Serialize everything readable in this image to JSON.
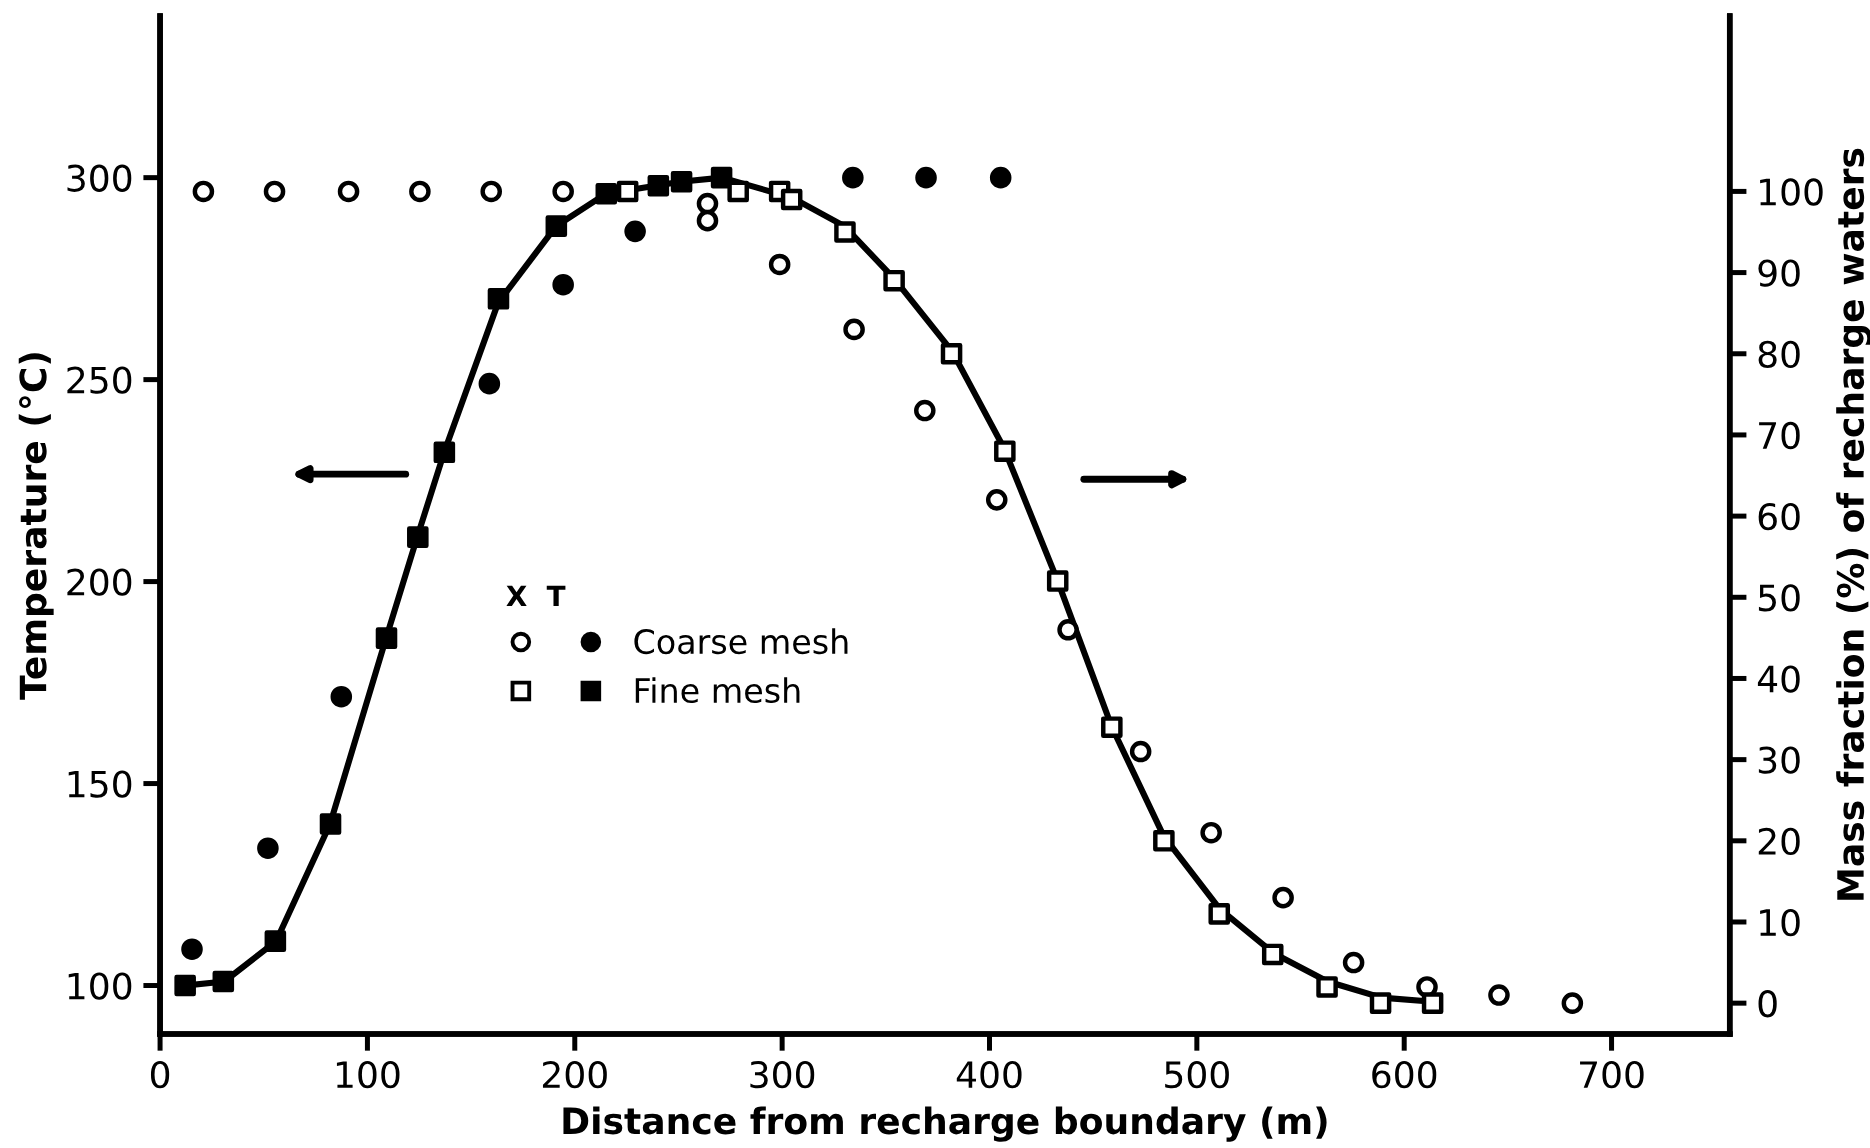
{
  "chart_data": {
    "type": "scatter",
    "xlabel": "Distance from recharge boundary (m)",
    "ylabel": "Temperature (°C)",
    "y2label": "Mass fraction (%) of recharge waters",
    "legend_title": "X  T",
    "xlim": [
      0,
      757
    ],
    "xticks": [
      0,
      100,
      200,
      300,
      400,
      500,
      600,
      700
    ],
    "ylim": [
      88,
      340
    ],
    "yticks": [
      100,
      150,
      200,
      250,
      300
    ],
    "y2lim": [
      -3.8,
      121.6
    ],
    "y2ticks": [
      0,
      10,
      20,
      30,
      40,
      50,
      60,
      70,
      80,
      90,
      100
    ],
    "legend": "center",
    "grid": false,
    "series": [
      {
        "type": "line",
        "color": "#000000",
        "marker": "none",
        "line_style": "solid",
        "x": [
          12,
          31,
          56,
          82,
          109,
          124,
          137,
          163,
          191,
          215,
          251,
          271,
          305,
          330,
          354,
          382,
          407,
          433,
          459,
          484,
          511,
          537,
          563,
          589,
          614
        ],
        "values": [
          100,
          101,
          111,
          140,
          186,
          211,
          232,
          269,
          288,
          296,
          299,
          300,
          295,
          288,
          275,
          257,
          233,
          200,
          164,
          137,
          119,
          108,
          101,
          97,
          96
        ]
      },
      {
        "name": "Coarse mesh",
        "color": "#000000",
        "marker": "circle",
        "x": [
          15.4,
          52,
          87.4,
          158.8,
          194.4,
          229.1,
          298.8,
          334.1,
          369.4,
          405.4
        ],
        "values": [
          109,
          134,
          171.5,
          249,
          273.5,
          286.7,
          null,
          300,
          300,
          300
        ]
      },
      {
        "color": "#ffffff",
        "marker": "circle",
        "axis": "y2",
        "x": [
          20.9,
          55.2,
          90.9,
          125.3,
          159.7,
          194.4,
          229.6,
          264,
          264,
          298.8,
          334.7,
          368.8,
          403.5,
          437.9,
          472.9,
          506.9,
          541.6,
          575.6,
          611,
          645.7,
          681.1
        ],
        "values": [
          100,
          100,
          100,
          100,
          100,
          100,
          null,
          98.5,
          96.4,
          91,
          83,
          73,
          62,
          46,
          31,
          21,
          13,
          5,
          2,
          1,
          0
        ]
      },
      {
        "name": "Fine mesh",
        "color": "#000000",
        "marker": "square",
        "x": [
          12.1,
          30.5,
          55.6,
          82.2,
          109.2,
          124.3,
          137.1,
          163.2,
          191.1,
          215.2,
          240.3,
          251.5,
          270.8
        ],
        "values": [
          100,
          101,
          111,
          140,
          186,
          211,
          232,
          270,
          288,
          296,
          298,
          299,
          300
        ]
      },
      {
        "color": "#ffffff",
        "marker": "square",
        "axis": "y2",
        "x": [
          225.5,
          278.8,
          298.8,
          304.6,
          330.3,
          354,
          381.7,
          407.4,
          432.9,
          459,
          484.1,
          510.8,
          536.6,
          562.8,
          588.6,
          613.7
        ],
        "values": [
          100,
          100,
          100,
          99,
          95,
          89,
          80,
          68,
          52,
          34,
          20,
          11,
          6,
          2,
          0,
          0
        ]
      }
    ]
  }
}
